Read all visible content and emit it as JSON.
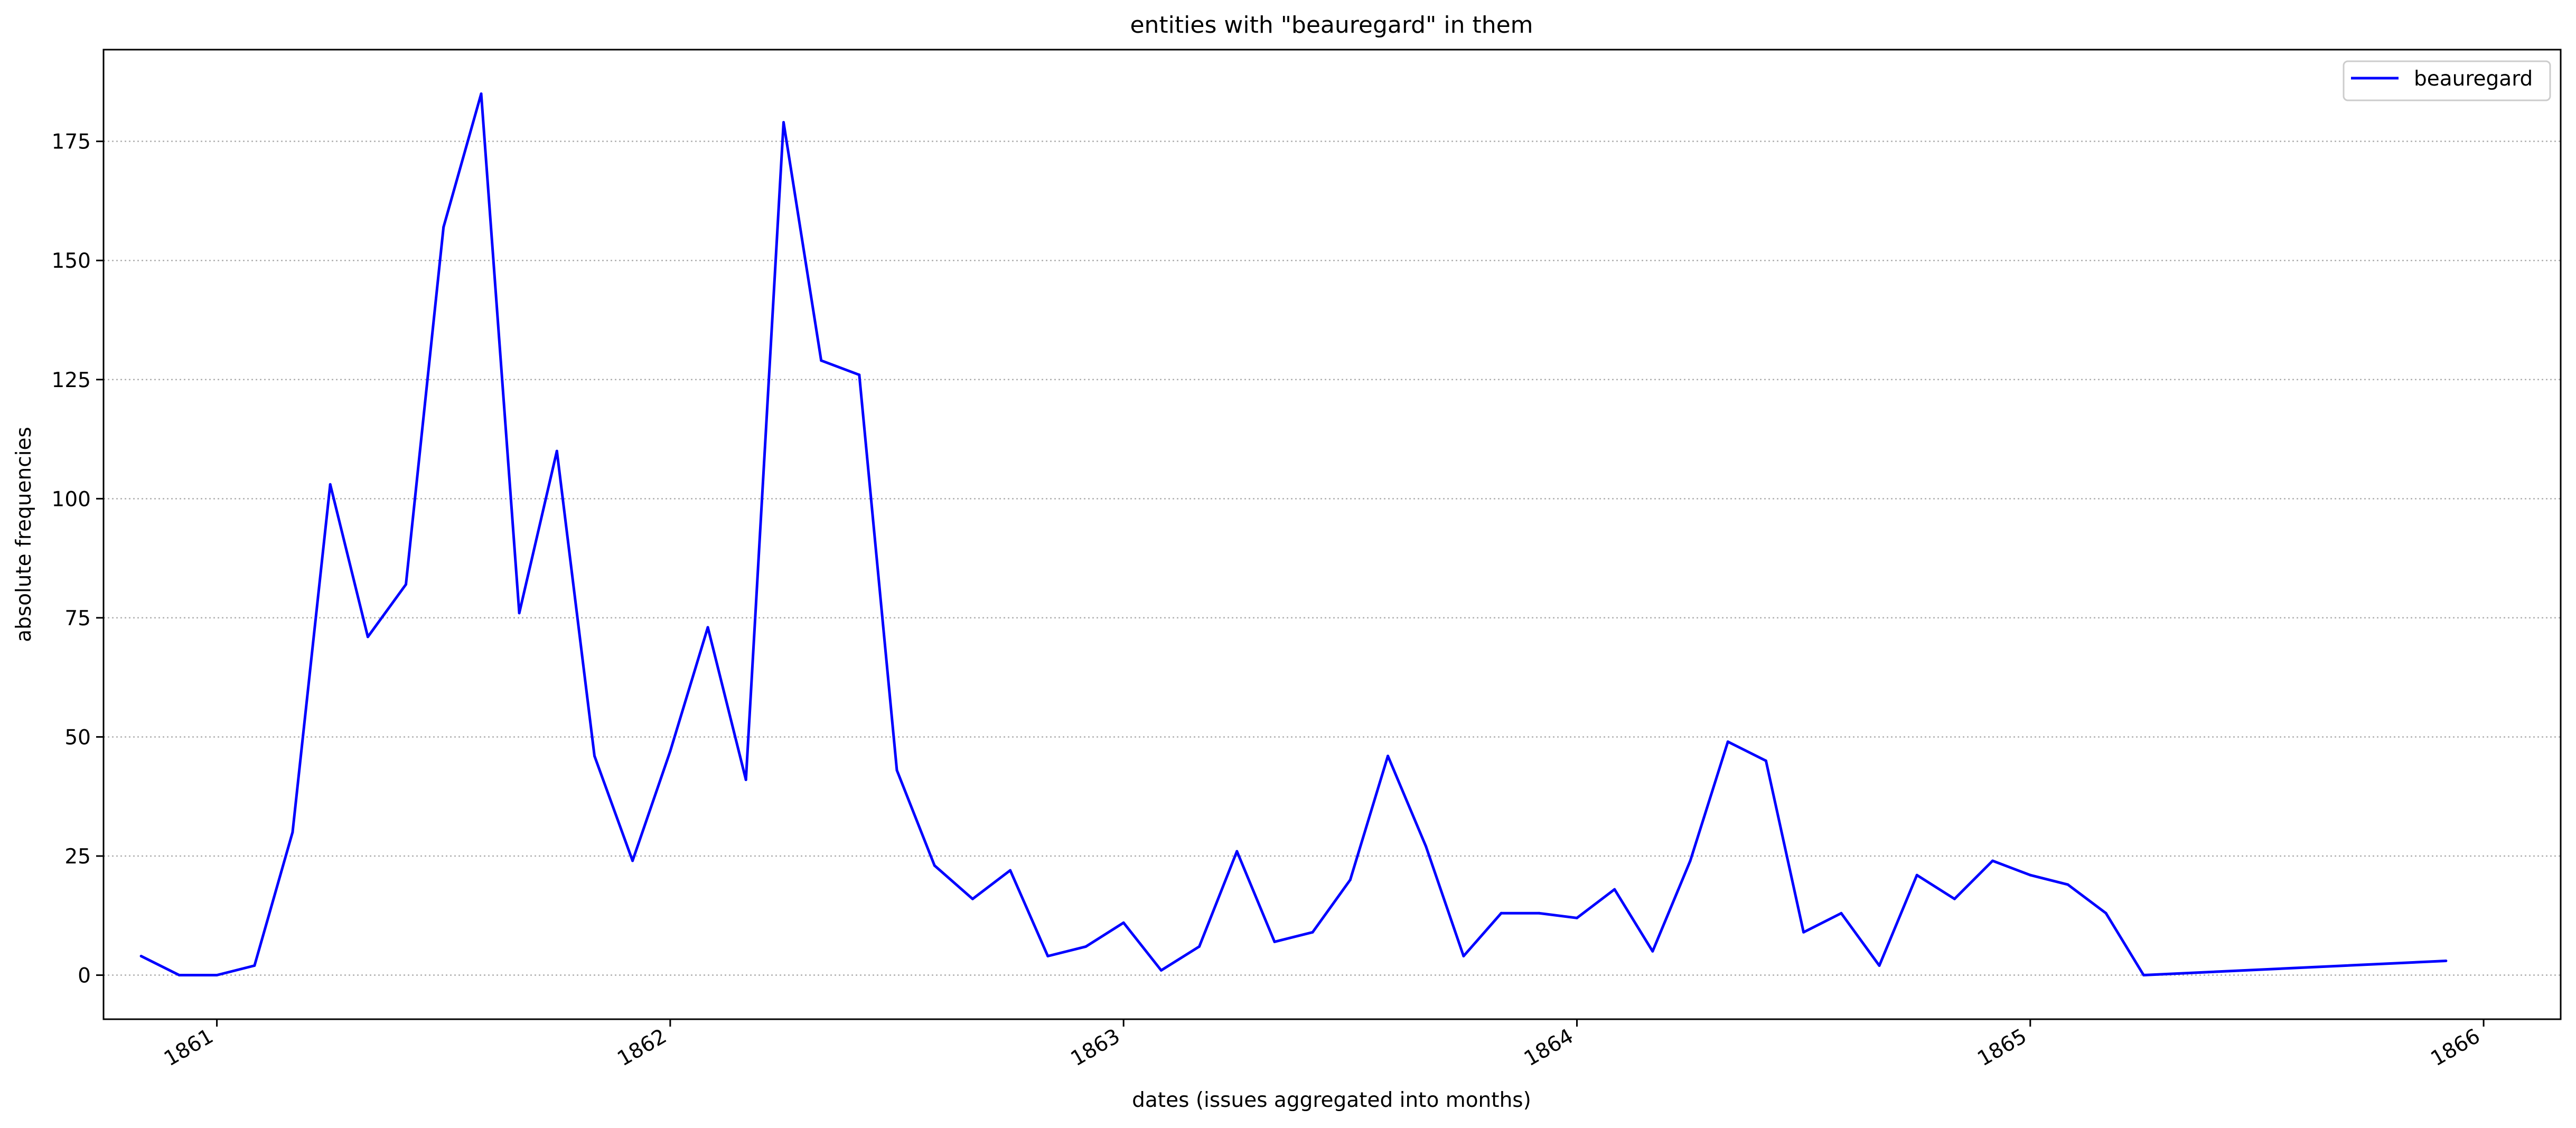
{
  "chart_data": {
    "type": "line",
    "title": "entities with \"beauregard\" in them",
    "xlabel": "dates (issues aggregated into months)",
    "ylabel": "absolute frequencies",
    "xlim": [
      1860.75,
      1866.17
    ],
    "ylim": [
      -9.25,
      194.25
    ],
    "x_ticks": [
      {
        "value": 1861,
        "label": "1861"
      },
      {
        "value": 1862,
        "label": "1862"
      },
      {
        "value": 1863,
        "label": "1863"
      },
      {
        "value": 1864,
        "label": "1864"
      },
      {
        "value": 1865,
        "label": "1865"
      },
      {
        "value": 1866,
        "label": "1866"
      }
    ],
    "y_ticks": [
      {
        "value": 0,
        "label": "0"
      },
      {
        "value": 25,
        "label": "25"
      },
      {
        "value": 50,
        "label": "50"
      },
      {
        "value": 75,
        "label": "75"
      },
      {
        "value": 100,
        "label": "100"
      },
      {
        "value": 125,
        "label": "125"
      },
      {
        "value": 150,
        "label": "150"
      },
      {
        "value": 175,
        "label": "175"
      }
    ],
    "grid": "y-dotted",
    "legend": {
      "position": "top-right",
      "entries": [
        "beauregard"
      ]
    },
    "series": [
      {
        "name": "beauregard",
        "color": "#0000ff",
        "x": [
          1860.833,
          1860.917,
          1861.0,
          1861.083,
          1861.167,
          1861.25,
          1861.333,
          1861.417,
          1861.5,
          1861.583,
          1861.667,
          1861.75,
          1861.833,
          1861.917,
          1862.0,
          1862.083,
          1862.167,
          1862.25,
          1862.333,
          1862.417,
          1862.5,
          1862.583,
          1862.667,
          1862.75,
          1862.833,
          1862.917,
          1863.0,
          1863.083,
          1863.167,
          1863.25,
          1863.333,
          1863.417,
          1863.5,
          1863.583,
          1863.667,
          1863.75,
          1863.833,
          1863.917,
          1864.0,
          1864.083,
          1864.167,
          1864.25,
          1864.333,
          1864.417,
          1864.5,
          1864.583,
          1864.667,
          1864.75,
          1864.833,
          1864.917,
          1865.0,
          1865.083,
          1865.167,
          1865.25,
          1865.917
        ],
        "values": [
          4,
          0,
          0,
          2,
          30,
          103,
          71,
          82,
          157,
          185,
          76,
          110,
          46,
          24,
          47,
          73,
          41,
          179,
          129,
          126,
          43,
          23,
          16,
          22,
          4,
          6,
          11,
          1,
          6,
          26,
          7,
          9,
          20,
          46,
          27,
          4,
          13,
          13,
          12,
          18,
          5,
          24,
          49,
          45,
          9,
          13,
          2,
          21,
          16,
          24,
          21,
          19,
          13,
          0,
          3
        ]
      }
    ]
  }
}
